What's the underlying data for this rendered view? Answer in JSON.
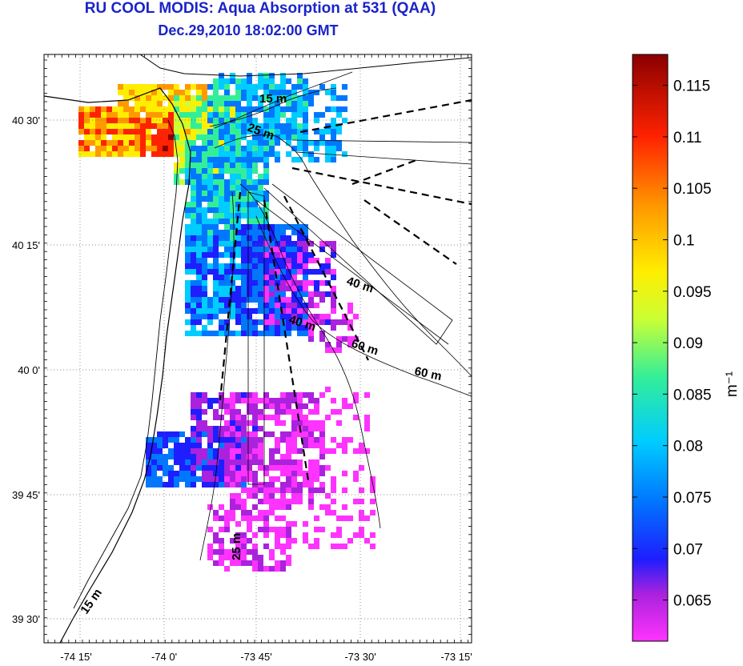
{
  "title": "RU COOL MODIS: Aqua Absorption at 531 (QAA)",
  "subtitle": "Dec.29,2010 18:02:00 GMT",
  "lat_ticks": [
    "40 30'",
    "40 15'",
    "40 0'",
    "39 45'",
    "39 30'"
  ],
  "lon_ticks": [
    "-74 15'",
    "-74 0'",
    "-73 45'",
    "-73 30'",
    "-73 15'"
  ],
  "depth_labels": [
    "15 m",
    "25 m",
    "40 m",
    "40 m",
    "60 m",
    "60 m",
    "25 m",
    "15 m"
  ],
  "colorbar": {
    "unit": "m⁻¹",
    "min": 0.061,
    "max": 0.118,
    "ticks": [
      "0.115",
      "0.11",
      "0.105",
      "0.1",
      "0.095",
      "0.09",
      "0.085",
      "0.08",
      "0.075",
      "0.07",
      "0.065"
    ],
    "tick_values": [
      0.115,
      0.11,
      0.105,
      0.1,
      0.095,
      0.09,
      0.085,
      0.08,
      0.075,
      0.07,
      0.065
    ],
    "colors": [
      "#ff33ff",
      "#aa22dd",
      "#1e1eff",
      "#0077ff",
      "#00ccff",
      "#33ee99",
      "#ccff33",
      "#ffee00",
      "#ff9900",
      "#ff2200",
      "#8a0000"
    ]
  }
}
